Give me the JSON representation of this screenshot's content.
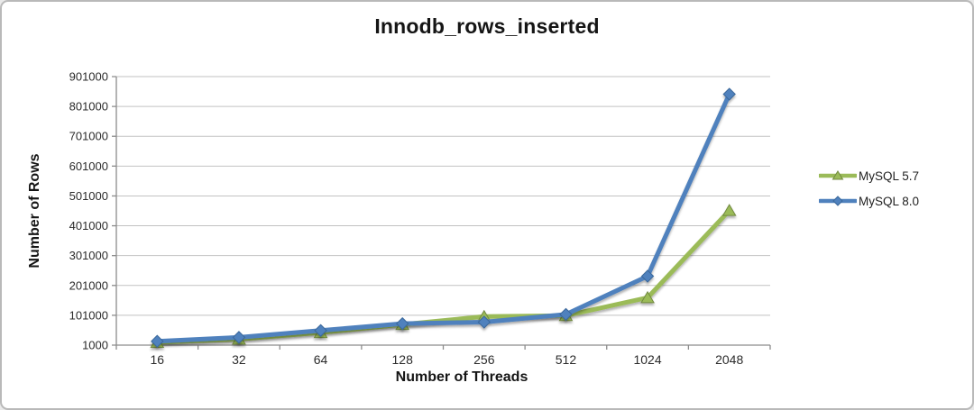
{
  "window": {
    "background_color": "#ffffff",
    "border_color": "#b9b9b9"
  },
  "chart_data": {
    "type": "line",
    "title": "Innodb_rows_inserted",
    "xlabel": "Number of Threads",
    "ylabel": "Number of Rows",
    "categories": [
      "16",
      "32",
      "64",
      "128",
      "256",
      "512",
      "1024",
      "2048"
    ],
    "series": [
      {
        "name": "MySQL 5.7",
        "marker": "triangle",
        "color": "#9BBB59",
        "edge_color": "#71893F",
        "values": [
          10000,
          21000,
          43000,
          70000,
          97000,
          100000,
          160000,
          452000
        ]
      },
      {
        "name": "MySQL 8.0",
        "marker": "diamond",
        "color": "#4F81BD",
        "edge_color": "#3A679A",
        "values": [
          14000,
          27000,
          50000,
          73000,
          78000,
          104000,
          232000,
          842000
        ]
      }
    ],
    "y_ticks": [
      1000,
      101000,
      201000,
      301000,
      401000,
      501000,
      601000,
      701000,
      801000,
      901000
    ],
    "ylim": [
      1000,
      901000
    ],
    "grid": true,
    "legend_position": "right",
    "gridline_color": "#c2c2c2",
    "axis_color": "#8c8c8c",
    "tick_label_color": "#2b2b2b"
  }
}
